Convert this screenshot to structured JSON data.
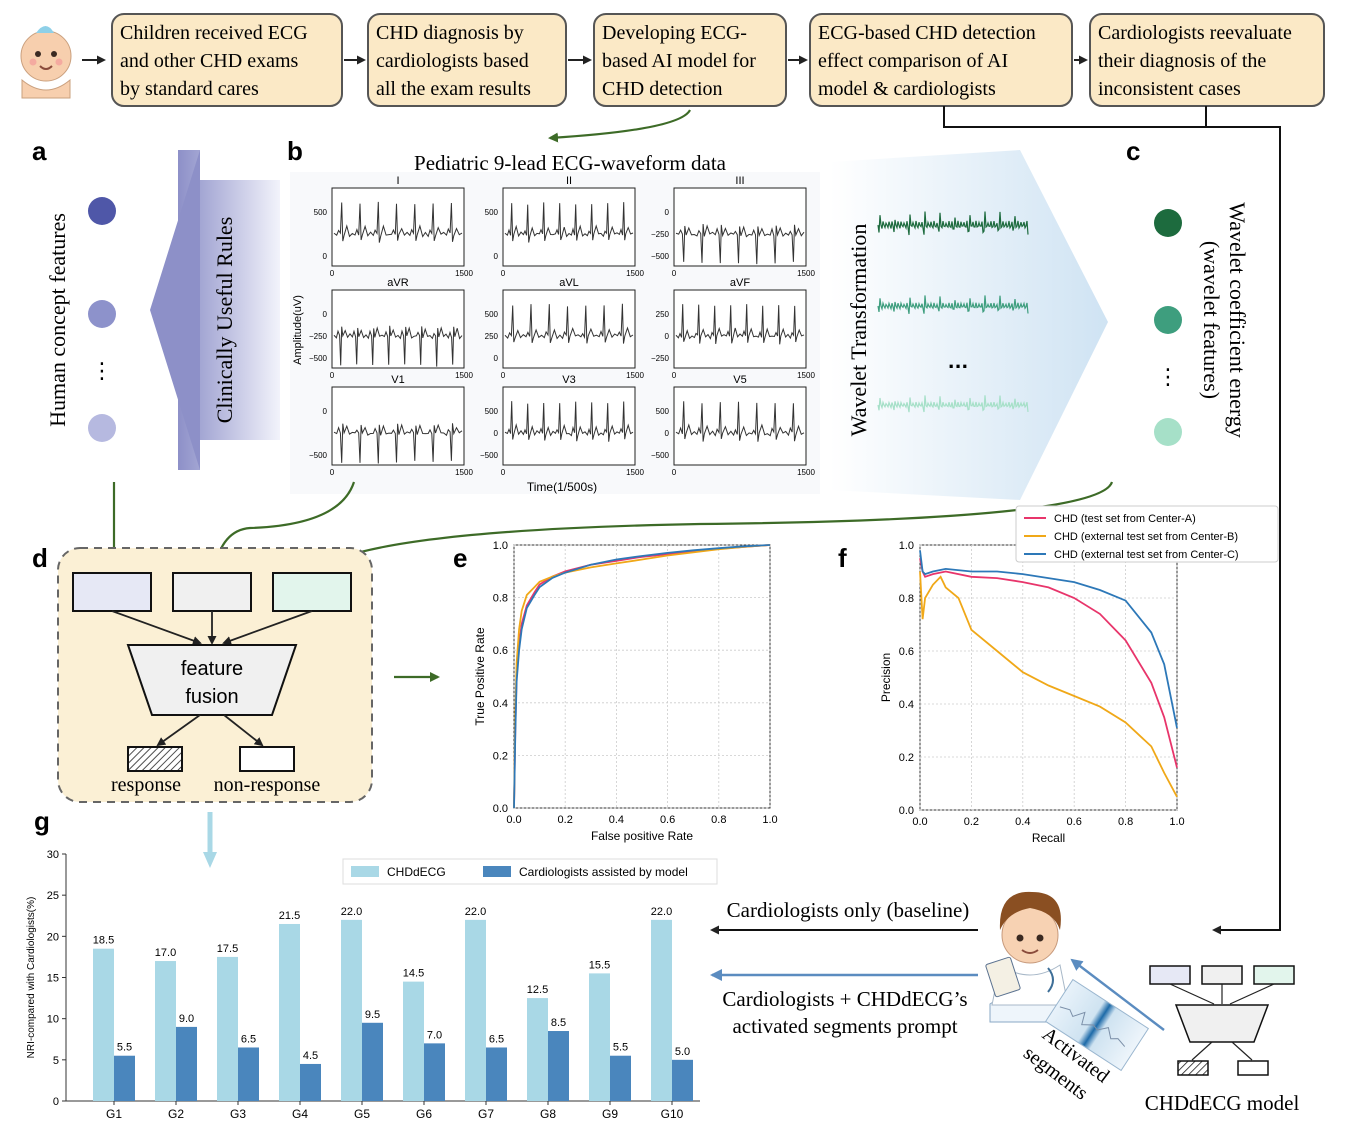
{
  "flow": {
    "steps": [
      {
        "lines": [
          "Children received ECG",
          "and other CHD exams",
          "by standard cares"
        ]
      },
      {
        "lines": [
          "CHD diagnosis by",
          "cardiologists based",
          "all the exam results"
        ]
      },
      {
        "lines": [
          "Developing ECG-",
          "based AI model for",
          "CHD detection"
        ]
      },
      {
        "lines": [
          "ECG-based CHD detection",
          "effect comparison of AI",
          "model & cardiologists"
        ]
      },
      {
        "lines": [
          "Cardiologists reevaluate",
          "their diagnosis of the",
          "inconsistent cases"
        ]
      }
    ]
  },
  "panel_labels": {
    "a": "a",
    "b": "b",
    "c": "c",
    "d": "d",
    "e": "e",
    "f": "f",
    "g": "g"
  },
  "panel_a": {
    "vertical_label": "Human concept features",
    "arrow_label": "Clinically Useful Rules",
    "ellipsis": "⋮",
    "circle_colors": [
      "#4f57a8",
      "#8d92cb",
      "#b6b9e0"
    ]
  },
  "panel_b": {
    "title": "Pediatric 9-lead ECG-waveform data",
    "ylabel": "Amplitude(uV)",
    "xlabel": "Time(1/500s)",
    "leads": [
      {
        "name": "I",
        "yticks": [
          "500",
          "0"
        ],
        "x0": "0",
        "x1": "1500"
      },
      {
        "name": "II",
        "yticks": [
          "500",
          "0"
        ],
        "x0": "0",
        "x1": "1500"
      },
      {
        "name": "III",
        "yticks": [
          "0",
          "−250",
          "−500"
        ],
        "x0": "0",
        "x1": "1500"
      },
      {
        "name": "aVR",
        "yticks": [
          "0",
          "−250",
          "−500"
        ],
        "x0": "0",
        "x1": "1500"
      },
      {
        "name": "aVL",
        "yticks": [
          "500",
          "250",
          "0"
        ],
        "x0": "0",
        "x1": "1500"
      },
      {
        "name": "aVF",
        "yticks": [
          "250",
          "0",
          "−250"
        ],
        "x0": "0",
        "x1": "1500"
      },
      {
        "name": "V1",
        "yticks": [
          "0",
          "−500"
        ],
        "x0": "0",
        "x1": "1500"
      },
      {
        "name": "V3",
        "yticks": [
          "500",
          "0",
          "−500"
        ],
        "x0": "0",
        "x1": "1500"
      },
      {
        "name": "V5",
        "yticks": [
          "500",
          "0",
          "−500"
        ],
        "x0": "0",
        "x1": "1500"
      }
    ]
  },
  "panel_c": {
    "wavelet_label": "Wavelet Transformation",
    "ellipsis": "...",
    "vertical_label_1": "Wavelet coefficient energy",
    "vertical_label_2": "(wavelet features)",
    "v_ellipsis": "⋮",
    "circle_colors": [
      "#1d6b3e",
      "#3e9e7e",
      "#a6e0c8"
    ]
  },
  "panel_d": {
    "fusion_line1": "feature",
    "fusion_line2": "fusion",
    "response": "response",
    "non_response": "non-response"
  },
  "chart_data": [
    {
      "type": "line",
      "panel": "e",
      "xlabel": "False positive Rate",
      "ylabel": "True Positive Rate",
      "xlim": [
        0,
        1
      ],
      "ylim": [
        0,
        1
      ],
      "xticks": [
        "0.0",
        "0.2",
        "0.4",
        "0.6",
        "0.8",
        "1.0"
      ],
      "yticks": [
        "0.0",
        "0.2",
        "0.4",
        "0.6",
        "0.8",
        "1.0"
      ],
      "grid": true,
      "series": [
        {
          "color": "#e8356b",
          "x": [
            0,
            0.005,
            0.01,
            0.02,
            0.03,
            0.05,
            0.08,
            0.1,
            0.15,
            0.2,
            0.3,
            0.4,
            0.5,
            0.6,
            0.7,
            0.8,
            0.9,
            1.0
          ],
          "y": [
            0,
            0.3,
            0.5,
            0.62,
            0.7,
            0.77,
            0.82,
            0.85,
            0.88,
            0.9,
            0.925,
            0.94,
            0.955,
            0.965,
            0.975,
            0.985,
            0.993,
            1.0
          ]
        },
        {
          "color": "#f0a818",
          "x": [
            0,
            0.005,
            0.01,
            0.02,
            0.03,
            0.05,
            0.08,
            0.1,
            0.15,
            0.2,
            0.3,
            0.4,
            0.5,
            0.6,
            0.7,
            0.8,
            0.9,
            1.0
          ],
          "y": [
            0,
            0.35,
            0.55,
            0.68,
            0.75,
            0.81,
            0.84,
            0.86,
            0.88,
            0.895,
            0.915,
            0.93,
            0.945,
            0.96,
            0.972,
            0.984,
            0.993,
            1.0
          ]
        },
        {
          "color": "#2d78b8",
          "x": [
            0,
            0.005,
            0.01,
            0.02,
            0.03,
            0.05,
            0.08,
            0.1,
            0.15,
            0.2,
            0.3,
            0.4,
            0.5,
            0.6,
            0.7,
            0.8,
            0.9,
            1.0
          ],
          "y": [
            0,
            0.28,
            0.48,
            0.6,
            0.68,
            0.76,
            0.81,
            0.84,
            0.875,
            0.895,
            0.925,
            0.945,
            0.958,
            0.97,
            0.98,
            0.988,
            0.995,
            1.0
          ]
        }
      ]
    },
    {
      "type": "line",
      "panel": "f",
      "xlabel": "Recall",
      "ylabel": "Precision",
      "xlim": [
        0,
        1
      ],
      "ylim": [
        0,
        1
      ],
      "xticks": [
        "0.0",
        "0.2",
        "0.4",
        "0.6",
        "0.8",
        "1.0"
      ],
      "yticks": [
        "0.0",
        "0.2",
        "0.4",
        "0.6",
        "0.8",
        "1.0"
      ],
      "grid": true,
      "legend_position": "top-right",
      "series": [
        {
          "name": "CHD (test set from Center-A)",
          "color": "#e8356b",
          "x": [
            0,
            0.01,
            0.02,
            0.05,
            0.1,
            0.2,
            0.3,
            0.4,
            0.5,
            0.6,
            0.7,
            0.8,
            0.9,
            0.95,
            1.0
          ],
          "y": [
            0.95,
            0.9,
            0.88,
            0.89,
            0.9,
            0.88,
            0.875,
            0.86,
            0.84,
            0.8,
            0.74,
            0.64,
            0.48,
            0.35,
            0.16
          ]
        },
        {
          "name": "CHD (external test set from Center-B)",
          "color": "#f0a818",
          "x": [
            0,
            0.01,
            0.02,
            0.05,
            0.08,
            0.1,
            0.15,
            0.2,
            0.3,
            0.4,
            0.5,
            0.6,
            0.7,
            0.8,
            0.9,
            0.95,
            1.0
          ],
          "y": [
            0.9,
            0.72,
            0.8,
            0.85,
            0.88,
            0.84,
            0.8,
            0.68,
            0.6,
            0.52,
            0.47,
            0.43,
            0.39,
            0.33,
            0.24,
            0.14,
            0.05
          ]
        },
        {
          "name": "CHD (external test set from Center-C)",
          "color": "#2d78b8",
          "x": [
            0,
            0.01,
            0.02,
            0.05,
            0.1,
            0.2,
            0.3,
            0.4,
            0.5,
            0.6,
            0.7,
            0.8,
            0.9,
            0.95,
            1.0
          ],
          "y": [
            0.98,
            0.9,
            0.89,
            0.9,
            0.91,
            0.9,
            0.9,
            0.89,
            0.875,
            0.86,
            0.83,
            0.79,
            0.67,
            0.55,
            0.31
          ]
        }
      ]
    },
    {
      "type": "bar",
      "panel": "g",
      "ylabel": "NRI-compared with Cardiologists(%)",
      "ylim": [
        0,
        30
      ],
      "yticks": [
        "0",
        "5",
        "10",
        "15",
        "20",
        "25",
        "30"
      ],
      "categories": [
        "G1",
        "G2",
        "G3",
        "G4",
        "G5",
        "G6",
        "G7",
        "G8",
        "G9",
        "G10"
      ],
      "legend_position": "top",
      "series": [
        {
          "name": "CHDdECG",
          "color": "#a9d8e6",
          "values": [
            18.5,
            17.0,
            17.5,
            21.5,
            22.0,
            14.5,
            22.0,
            12.5,
            15.5,
            22.0
          ],
          "labels": [
            "18.5",
            "17.0",
            "17.5",
            "21.5",
            "22.0",
            "14.5",
            "22.0",
            "12.5",
            "15.5",
            "22.0"
          ]
        },
        {
          "name": "Cardiologists assisted by model",
          "color": "#4a86bd",
          "values": [
            5.5,
            9.0,
            6.5,
            4.5,
            9.5,
            7.0,
            6.5,
            8.5,
            5.5,
            5.0
          ],
          "labels": [
            "5.5",
            "9.0",
            "6.5",
            "4.5",
            "9.5",
            "7.0",
            "6.5",
            "8.5",
            "5.5",
            "5.0"
          ]
        }
      ]
    }
  ],
  "bottom_right": {
    "baseline_label": "Cardiologists only (baseline)",
    "assisted_line1": "Cardiologists + CHDdECG’s",
    "assisted_line2": "activated segments prompt",
    "activated_line1": "Activated",
    "activated_line2": "segments",
    "model_label": "CHDdECG model"
  }
}
